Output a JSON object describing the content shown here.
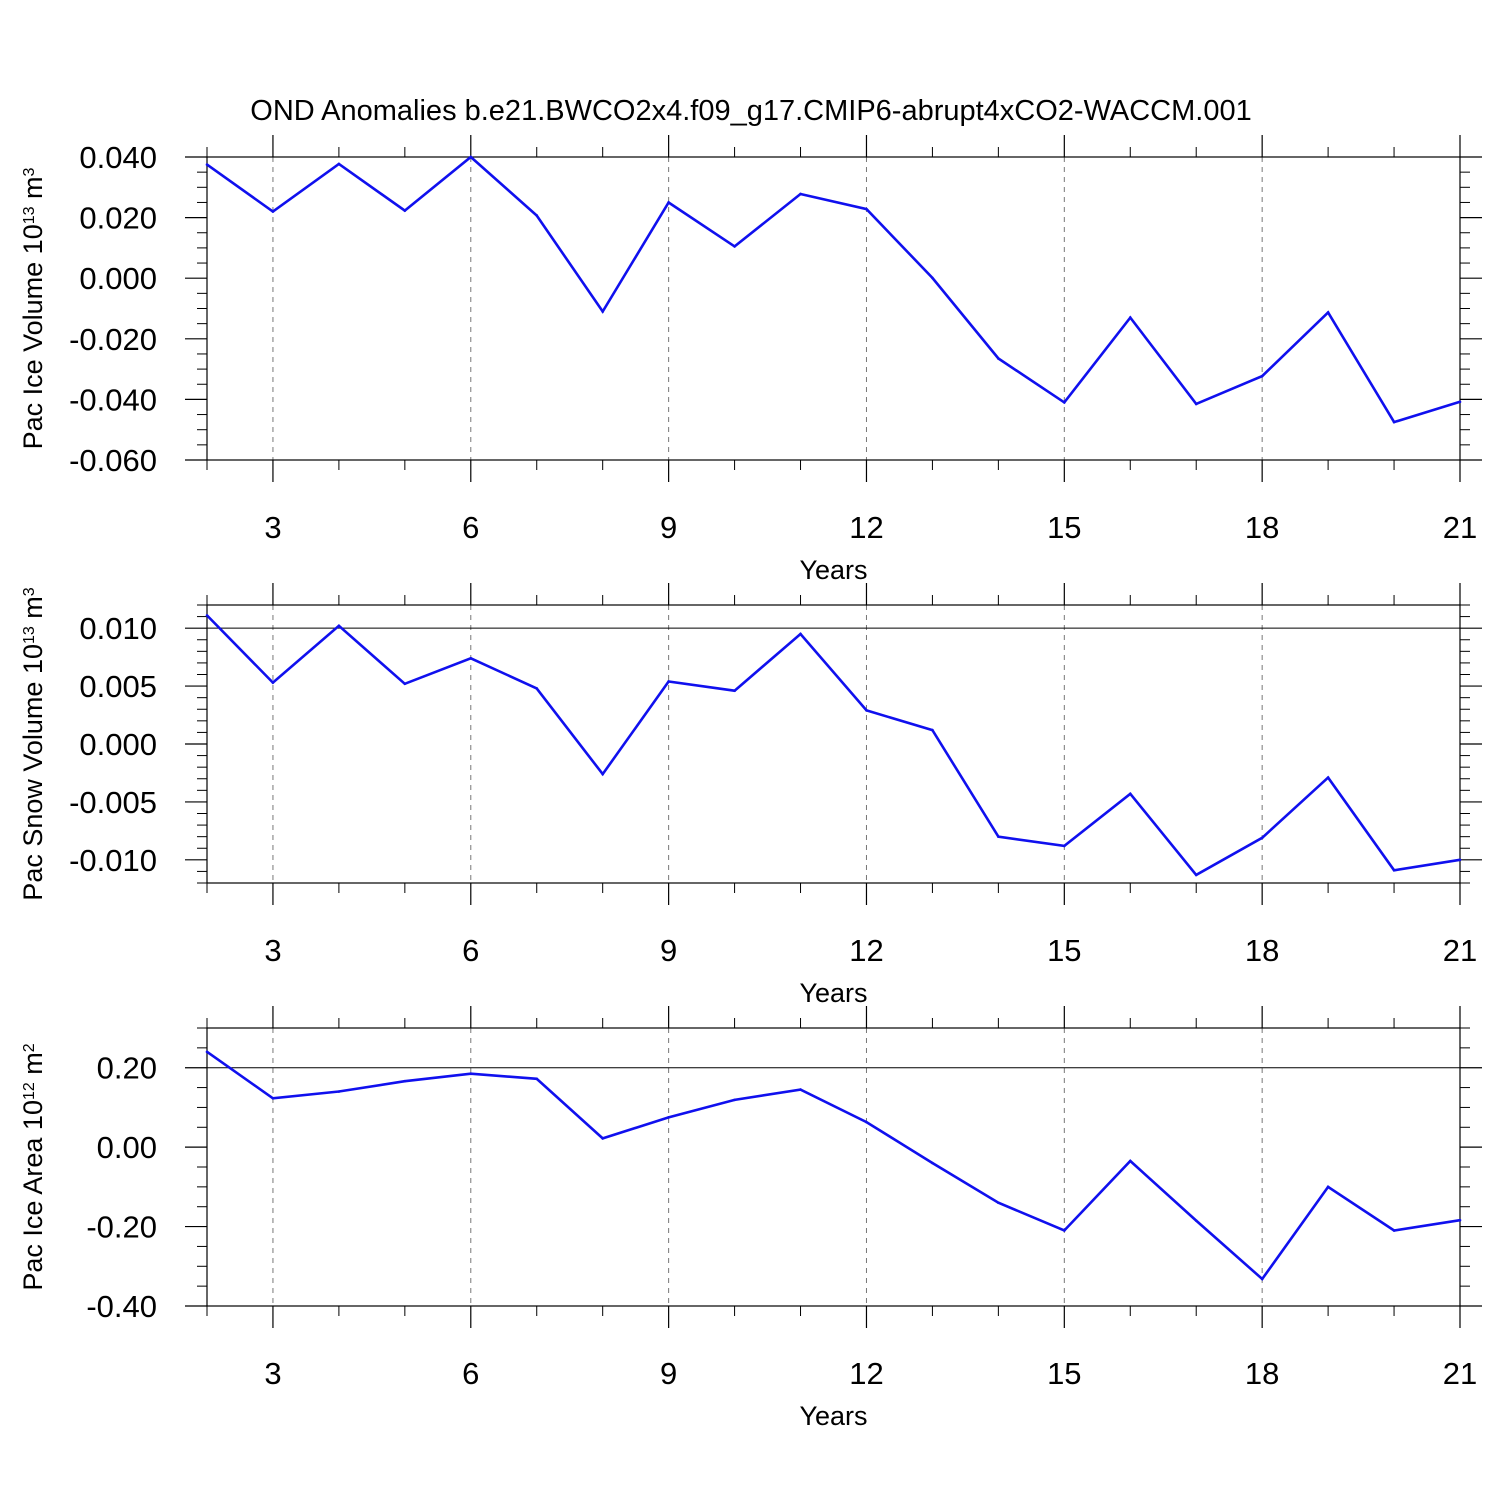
{
  "title": "OND Anomalies b.e21.BWCO2x4.f09_g17.CMIP6-abrupt4xCO2-WACCM.001",
  "colors": {
    "line": "#1010ee",
    "axis": "#000000",
    "grid": "#777777"
  },
  "chart_data": [
    {
      "type": "line",
      "xlabel": "Years",
      "ylabel": {
        "prefix": "Pac Ice Volume 10",
        "exponent": "13",
        "unit": " m",
        "unit_exponent": "3"
      },
      "xlim": [
        2,
        21
      ],
      "ylim": [
        -0.06,
        0.04
      ],
      "xticks": [
        3,
        6,
        9,
        12,
        15,
        18,
        21
      ],
      "xtick_labels": [
        "3",
        "6",
        "9",
        "12",
        "15",
        "18",
        "21"
      ],
      "yticks": [
        -0.06,
        -0.04,
        -0.02,
        0.0,
        0.02,
        0.04
      ],
      "ytick_labels": [
        "-0.060",
        "-0.040",
        "-0.020",
        "0.000",
        "0.020",
        "0.040"
      ],
      "y_minor_step": 0.005,
      "x": [
        2,
        3,
        4,
        5,
        6,
        7,
        8,
        9,
        10,
        11,
        12,
        13,
        14,
        15,
        16,
        17,
        18,
        19,
        20,
        21
      ],
      "values": [
        0.0375,
        0.022,
        0.0377,
        0.0223,
        0.04,
        0.0207,
        -0.011,
        0.025,
        0.0105,
        0.0278,
        0.0228,
        0.0001,
        -0.0265,
        -0.041,
        -0.013,
        -0.0415,
        -0.0323,
        -0.0113,
        -0.0475,
        -0.0408
      ]
    },
    {
      "type": "line",
      "xlabel": "Years",
      "ylabel": {
        "prefix": "Pac Snow Volume 10",
        "exponent": "13",
        "unit": " m",
        "unit_exponent": "3"
      },
      "xlim": [
        2,
        21
      ],
      "ylim": [
        -0.012,
        0.012
      ],
      "xticks": [
        3,
        6,
        9,
        12,
        15,
        18,
        21
      ],
      "xtick_labels": [
        "3",
        "6",
        "9",
        "12",
        "15",
        "18",
        "21"
      ],
      "yticks": [
        -0.01,
        -0.005,
        0.0,
        0.005,
        0.01
      ],
      "ytick_labels": [
        "-0.010",
        "-0.005",
        "0.000",
        "0.005",
        "0.010"
      ],
      "y_minor_step": 0.001,
      "x": [
        2,
        3,
        4,
        5,
        6,
        7,
        8,
        9,
        10,
        11,
        12,
        13,
        14,
        15,
        16,
        17,
        18,
        19,
        20,
        21
      ],
      "values": [
        0.0111,
        0.0053,
        0.0102,
        0.0052,
        0.0074,
        0.0048,
        -0.0026,
        0.0054,
        0.0046,
        0.0095,
        0.0029,
        0.0012,
        -0.008,
        -0.0088,
        -0.0043,
        -0.0113,
        -0.0081,
        -0.0029,
        -0.0109,
        -0.01
      ]
    },
    {
      "type": "line",
      "xlabel": "Years",
      "ylabel": {
        "prefix": "Pac Ice Area 10",
        "exponent": "12",
        "unit": " m",
        "unit_exponent": "2"
      },
      "xlim": [
        2,
        21
      ],
      "ylim": [
        -0.4,
        0.3
      ],
      "xticks": [
        3,
        6,
        9,
        12,
        15,
        18,
        21
      ],
      "xtick_labels": [
        "3",
        "6",
        "9",
        "12",
        "15",
        "18",
        "21"
      ],
      "yticks": [
        -0.4,
        -0.2,
        0.0,
        0.2
      ],
      "ytick_labels": [
        "-0.40",
        "-0.20",
        "0.00",
        "0.20"
      ],
      "y_minor_step": 0.05,
      "x": [
        2,
        3,
        4,
        5,
        6,
        7,
        8,
        9,
        10,
        11,
        12,
        13,
        14,
        15,
        16,
        17,
        18,
        19,
        20,
        21
      ],
      "values": [
        0.24,
        0.123,
        0.14,
        0.166,
        0.185,
        0.172,
        0.022,
        0.075,
        0.119,
        0.145,
        0.063,
        -0.04,
        -0.14,
        -0.21,
        -0.035,
        -0.185,
        -0.332,
        -0.1,
        -0.21,
        -0.184
      ]
    }
  ]
}
